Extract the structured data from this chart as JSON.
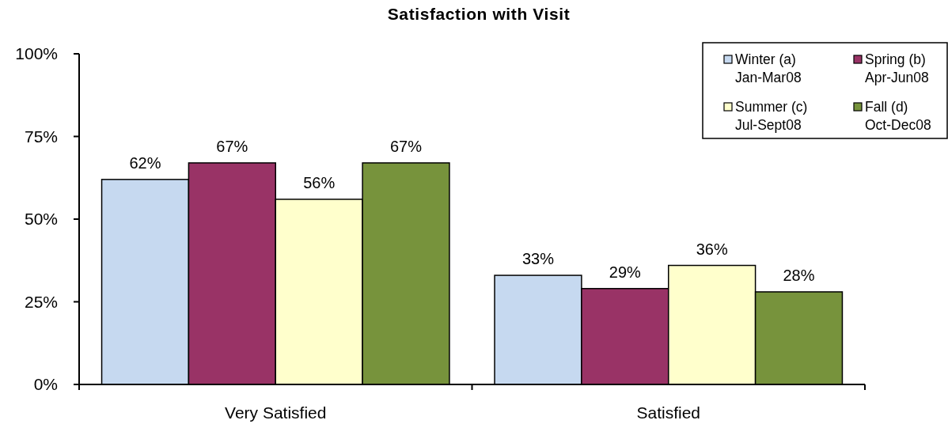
{
  "chart_data": {
    "type": "bar",
    "title": "Satisfaction with Visit",
    "categories": [
      "Very Satisfied",
      "Satisfied"
    ],
    "series": [
      {
        "name": "Winter (a)\nJan-Mar08",
        "color": "#c6d9f0",
        "values": [
          62,
          33
        ],
        "value_labels": [
          "62%",
          "33%"
        ]
      },
      {
        "name": "Spring (b)\nApr-Jun08",
        "color": "#993366",
        "values": [
          67,
          29
        ],
        "value_labels": [
          "67%",
          "29%"
        ]
      },
      {
        "name": "Summer (c)\nJul-Sept08",
        "color": "#ffffcc",
        "values": [
          56,
          36
        ],
        "value_labels": [
          "56%",
          "36%"
        ]
      },
      {
        "name": "Fall (d)\nOct-Dec08",
        "color": "#77933c",
        "values": [
          67,
          28
        ],
        "value_labels": [
          "67%",
          "28%"
        ]
      }
    ],
    "ylim": [
      0,
      100
    ],
    "yticks": [
      {
        "value": 0,
        "label": "0%"
      },
      {
        "value": 25,
        "label": "25%"
      },
      {
        "value": 50,
        "label": "50%"
      },
      {
        "value": 75,
        "label": "75%"
      },
      {
        "value": 100,
        "label": "100%"
      }
    ],
    "grid": false,
    "legend": "top right"
  }
}
